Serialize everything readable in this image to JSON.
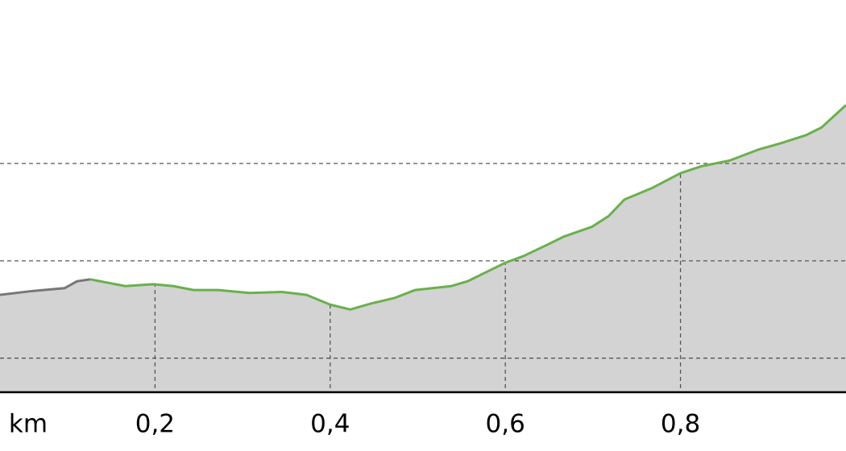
{
  "chart_data": {
    "type": "area",
    "x_unit": "km",
    "xlim": [
      0.023,
      0.989
    ],
    "xticks": [
      {
        "value": 0.2,
        "label": "0,2"
      },
      {
        "value": 0.4,
        "label": "0,4"
      },
      {
        "value": 0.6,
        "label": "0,6"
      },
      {
        "value": 0.8,
        "label": "0,8"
      },
      1
    ],
    "ylim": [
      96.5,
      136.8
    ],
    "yticks": [
      100,
      110,
      120
    ],
    "grid": true,
    "fill_color": "#d3d3d3",
    "series": [
      {
        "color": "#777777",
        "x": [
          0.023,
          0.06,
          0.097,
          0.111,
          0.126
        ],
        "values": [
          106.5,
          106.9,
          107.2,
          107.9,
          108.1
        ]
      },
      {
        "color": "#6ab04c",
        "x": [
          0.126,
          0.166,
          0.198,
          0.221,
          0.244,
          0.272,
          0.308,
          0.345,
          0.373,
          0.4,
          0.423,
          0.446,
          0.474,
          0.497,
          0.538,
          0.557,
          0.575,
          0.6,
          0.621,
          0.649,
          0.667,
          0.699,
          0.718,
          0.736,
          0.768,
          0.8,
          0.823,
          0.856,
          0.888,
          0.915,
          0.943,
          0.961,
          0.989
        ],
        "values": [
          108.1,
          107.4,
          107.6,
          107.4,
          107.0,
          107.0,
          106.7,
          106.8,
          106.5,
          105.5,
          105.0,
          105.6,
          106.2,
          107.0,
          107.4,
          107.9,
          108.7,
          109.8,
          110.5,
          111.7,
          112.5,
          113.5,
          114.6,
          116.3,
          117.5,
          119.0,
          119.7,
          120.3,
          121.4,
          122.1,
          122.9,
          123.7,
          126.0
        ]
      }
    ]
  }
}
